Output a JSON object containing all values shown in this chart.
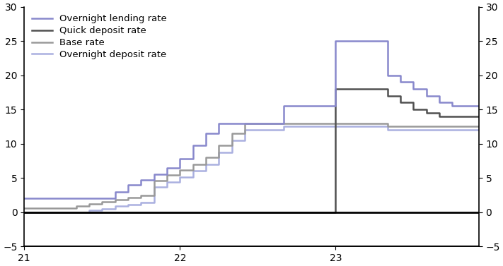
{
  "xlim": [
    21.0,
    23.92
  ],
  "ylim": [
    -5,
    30
  ],
  "yticks": [
    -5,
    0,
    5,
    10,
    15,
    20,
    25,
    30
  ],
  "xticks": [
    21,
    22,
    23
  ],
  "series": {
    "overnight_lending": {
      "label": "Overnight lending rate",
      "color": "#8888cc",
      "lw": 1.8,
      "x": [
        21.0,
        21.5,
        21.583,
        21.667,
        21.75,
        21.833,
        21.917,
        22.0,
        22.083,
        22.167,
        22.25,
        22.333,
        22.417,
        22.5,
        22.583,
        22.667,
        22.75,
        22.833,
        22.917,
        23.0,
        23.083,
        23.25,
        23.333,
        23.417,
        23.5,
        23.583,
        23.667,
        23.75,
        23.833,
        23.917
      ],
      "y": [
        2.0,
        2.0,
        3.0,
        4.0,
        4.75,
        5.5,
        6.5,
        7.75,
        9.75,
        11.5,
        13.0,
        13.0,
        13.0,
        13.0,
        13.0,
        15.5,
        15.5,
        15.5,
        15.5,
        25.0,
        25.0,
        25.0,
        20.0,
        19.0,
        18.0,
        17.0,
        16.0,
        15.5,
        15.5,
        15.5
      ]
    },
    "quick_deposit": {
      "label": "Quick deposit rate",
      "color": "#505050",
      "lw": 1.8,
      "x": [
        21.0,
        21.75,
        22.0,
        22.083,
        22.167,
        22.25,
        22.333,
        22.417,
        22.5,
        22.583,
        22.667,
        22.75,
        22.833,
        22.917,
        23.0,
        23.083,
        23.25,
        23.333,
        23.417,
        23.5,
        23.583,
        23.667,
        23.75,
        23.833,
        23.917
      ],
      "y": [
        0.0,
        0.0,
        0.0,
        0.0,
        0.0,
        0.0,
        0.0,
        0.0,
        0.0,
        0.0,
        0.0,
        0.0,
        0.0,
        0.0,
        18.0,
        18.0,
        18.0,
        17.0,
        16.0,
        15.0,
        14.5,
        14.0,
        14.0,
        14.0,
        14.0
      ]
    },
    "base_rate": {
      "label": "Base rate",
      "color": "#999999",
      "lw": 1.8,
      "x": [
        21.0,
        21.25,
        21.333,
        21.417,
        21.5,
        21.583,
        21.667,
        21.75,
        21.833,
        21.917,
        22.0,
        22.083,
        22.167,
        22.25,
        22.333,
        22.417,
        22.5,
        22.583,
        22.667,
        22.75,
        22.833,
        22.917,
        23.0,
        23.083,
        23.25,
        23.333,
        23.5,
        23.667,
        23.833,
        23.917
      ],
      "y": [
        0.6,
        0.6,
        0.9,
        1.2,
        1.5,
        1.85,
        2.1,
        2.4,
        4.65,
        5.4,
        6.15,
        7.0,
        8.0,
        9.75,
        11.5,
        13.0,
        13.0,
        13.0,
        13.0,
        13.0,
        13.0,
        13.0,
        13.0,
        13.0,
        13.0,
        12.5,
        12.5,
        12.5,
        12.5,
        12.5
      ]
    },
    "overnight_deposit": {
      "label": "Overnight deposit rate",
      "color": "#aab0e0",
      "lw": 1.8,
      "x": [
        21.0,
        21.25,
        21.333,
        21.417,
        21.5,
        21.583,
        21.667,
        21.75,
        21.833,
        21.917,
        22.0,
        22.083,
        22.167,
        22.25,
        22.333,
        22.417,
        22.5,
        22.583,
        22.667,
        22.75,
        22.833,
        22.917,
        23.0,
        23.083,
        23.25,
        23.333,
        23.5,
        23.667,
        23.833,
        23.917
      ],
      "y": [
        -0.05,
        -0.05,
        0.0,
        0.25,
        0.5,
        0.85,
        1.1,
        1.4,
        3.65,
        4.4,
        5.15,
        6.0,
        7.0,
        8.75,
        10.5,
        12.0,
        12.0,
        12.0,
        12.5,
        12.5,
        12.5,
        12.5,
        12.5,
        12.5,
        12.5,
        12.0,
        12.0,
        12.0,
        12.0,
        12.0
      ]
    }
  },
  "background_color": "#ffffff",
  "legend_fontsize": 9.5,
  "tick_fontsize": 10
}
